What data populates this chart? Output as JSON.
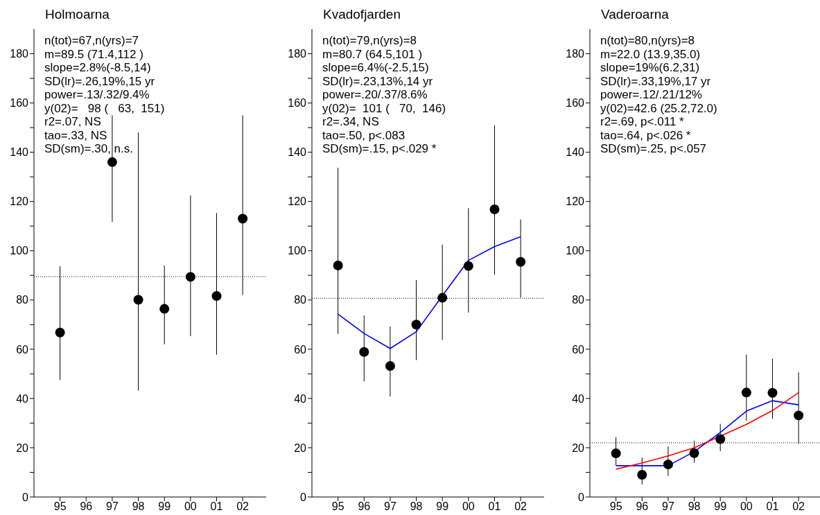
{
  "chart_data": [
    {
      "type": "scatter",
      "title": "Holmoarna",
      "categories": [
        "95",
        "96",
        "97",
        "98",
        "99",
        "00",
        "01",
        "02"
      ],
      "series": [
        {
          "color": "#000000",
          "marker": "circle",
          "values": [
            66.8,
            null,
            136,
            80.1,
            76.4,
            89.4,
            81.6,
            113.0
          ],
          "errors": [
            [
              47.5,
              93.7
            ],
            null,
            [
              111.7,
              155
            ],
            [
              43.2,
              148
            ],
            [
              62.0,
              94.0
            ],
            [
              65.3,
              122.4
            ],
            [
              57.8,
              115.3
            ],
            [
              82.0,
              155
            ]
          ]
        }
      ],
      "ylim": [
        0,
        190
      ],
      "yticks": [
        0,
        {
          "value": 10,
          "label": null
        },
        20,
        {
          "value": 30,
          "label": null
        },
        40,
        {
          "value": 50,
          "label": null
        },
        60,
        {
          "value": 70,
          "label": null
        },
        80,
        {
          "value": 90,
          "label": null
        },
        100,
        {
          "value": 110,
          "label": null
        },
        120,
        {
          "value": 130,
          "label": null
        },
        140,
        {
          "value": 150,
          "label": null
        },
        160,
        {
          "value": 170,
          "label": null
        },
        180
      ],
      "ref_lines": [
        {
          "axis": "y",
          "value": 89.5,
          "color": "#000000",
          "line_style": "dotted"
        }
      ],
      "annotations": [
        "n(tot)=67,n(yrs)=7",
        "m=89.5 (71.4,112 )",
        "slope=2.8%(-8.5,14)",
        "SD(lr)=.26,19%,15 yr",
        "power=.13/.32/9.4%",
        "y(02)=   98 (   63,  151)",
        "r2=.07, NS",
        "tao=.33, NS",
        "SD(sm)=.30, n.s."
      ],
      "grid": false,
      "legend": false
    },
    {
      "type": "scatter",
      "title": "Kvadofjarden",
      "categories": [
        "95",
        "96",
        "97",
        "98",
        "99",
        "00",
        "01",
        "02"
      ],
      "series": [
        {
          "color": "#000000",
          "marker": "circle",
          "values": [
            94.0,
            58.9,
            53.2,
            70.0,
            80.9,
            93.8,
            116.8,
            95.5
          ],
          "errors": [
            [
              66.2,
              133.7
            ],
            [
              46.9,
              73.7
            ],
            [
              40.8,
              69.3
            ],
            [
              55.6,
              88.1
            ],
            [
              63.8,
              102.5
            ],
            [
              74.9,
              117.3
            ],
            [
              90.2,
              151
            ],
            [
              81.0,
              112.7
            ]
          ]
        },
        {
          "type": "line",
          "color": "#0000ff",
          "marker": "none",
          "values": [
            74.3,
            66.4,
            60.3,
            67.1,
            81.7,
            96.1,
            101.7,
            105.7
          ]
        }
      ],
      "ylim": [
        0,
        190
      ],
      "yticks": [
        0,
        {
          "value": 10,
          "label": null
        },
        20,
        {
          "value": 30,
          "label": null
        },
        40,
        {
          "value": 50,
          "label": null
        },
        60,
        {
          "value": 70,
          "label": null
        },
        80,
        {
          "value": 90,
          "label": null
        },
        100,
        {
          "value": 110,
          "label": null
        },
        120,
        {
          "value": 130,
          "label": null
        },
        140,
        {
          "value": 150,
          "label": null
        },
        160,
        {
          "value": 170,
          "label": null
        },
        180
      ],
      "ref_lines": [
        {
          "axis": "y",
          "value": 80.7,
          "color": "#000000",
          "line_style": "dotted"
        }
      ],
      "annotations": [
        "n(tot)=79,n(yrs)=8",
        "m=80.7 (64.5,101 )",
        "slope=6.4%(-2.5,15)",
        "SD(lr)=.23,13%,14 yr",
        "power=.20/.37/8.6%",
        "y(02)=  101 (   70,  146)",
        "r2=.34, NS",
        "tao=.50, p<.083",
        "SD(sm)=.15, p<.029 *"
      ],
      "grid": false,
      "legend": false
    },
    {
      "type": "scatter",
      "title": "Vaderoarna",
      "categories": [
        "95",
        "96",
        "97",
        "98",
        "99",
        "00",
        "01",
        "02"
      ],
      "series": [
        {
          "color": "#000000",
          "marker": "circle",
          "values": [
            17.7,
            9.0,
            13.2,
            17.8,
            23.5,
            42.4,
            42.3,
            33.1
          ],
          "errors": [
            [
              12.9,
              24.3
            ],
            [
              5.1,
              16.0
            ],
            [
              8.5,
              20.5
            ],
            [
              13.9,
              22.8
            ],
            [
              18.6,
              29.7
            ],
            [
              30.9,
              57.8
            ],
            [
              31.8,
              56.2
            ],
            [
              21.7,
              50.6
            ]
          ]
        },
        {
          "type": "line",
          "color": "#0000ff",
          "marker": "none",
          "values": [
            12.7,
            12.7,
            12.7,
            18.4,
            26.2,
            34.9,
            39.1,
            37.4
          ]
        },
        {
          "type": "line",
          "color": "#ff0000",
          "marker": "none",
          "values": [
            11.3,
            13.8,
            16.7,
            20.0,
            24.7,
            29.5,
            35.1,
            42.4
          ]
        }
      ],
      "ylim": [
        0,
        190
      ],
      "yticks": [
        0,
        {
          "value": 10,
          "label": null
        },
        20,
        {
          "value": 30,
          "label": null
        },
        40,
        {
          "value": 50,
          "label": null
        },
        60,
        {
          "value": 70,
          "label": null
        },
        80,
        {
          "value": 90,
          "label": null
        },
        100,
        {
          "value": 110,
          "label": null
        },
        120,
        {
          "value": 130,
          "label": null
        },
        140,
        {
          "value": 150,
          "label": null
        },
        160,
        {
          "value": 170,
          "label": null
        },
        180
      ],
      "ref_lines": [
        {
          "axis": "y",
          "value": 22.0,
          "color": "#000000",
          "line_style": "dotted"
        }
      ],
      "annotations": [
        "n(tot)=80,n(yrs)=8",
        "m=22.0 (13.9,35.0)",
        "slope=19%(6.2,31)",
        "SD(lr)=.33,19%,17 yr",
        "power=.12/.21/12%",
        "y(02)=42.6 (25.2,72.0)",
        "r2=.69, p<.011 *",
        "tao=.64, p<.026 *",
        "SD(sm)=.25, p<.057"
      ],
      "grid": false,
      "legend": false
    }
  ]
}
